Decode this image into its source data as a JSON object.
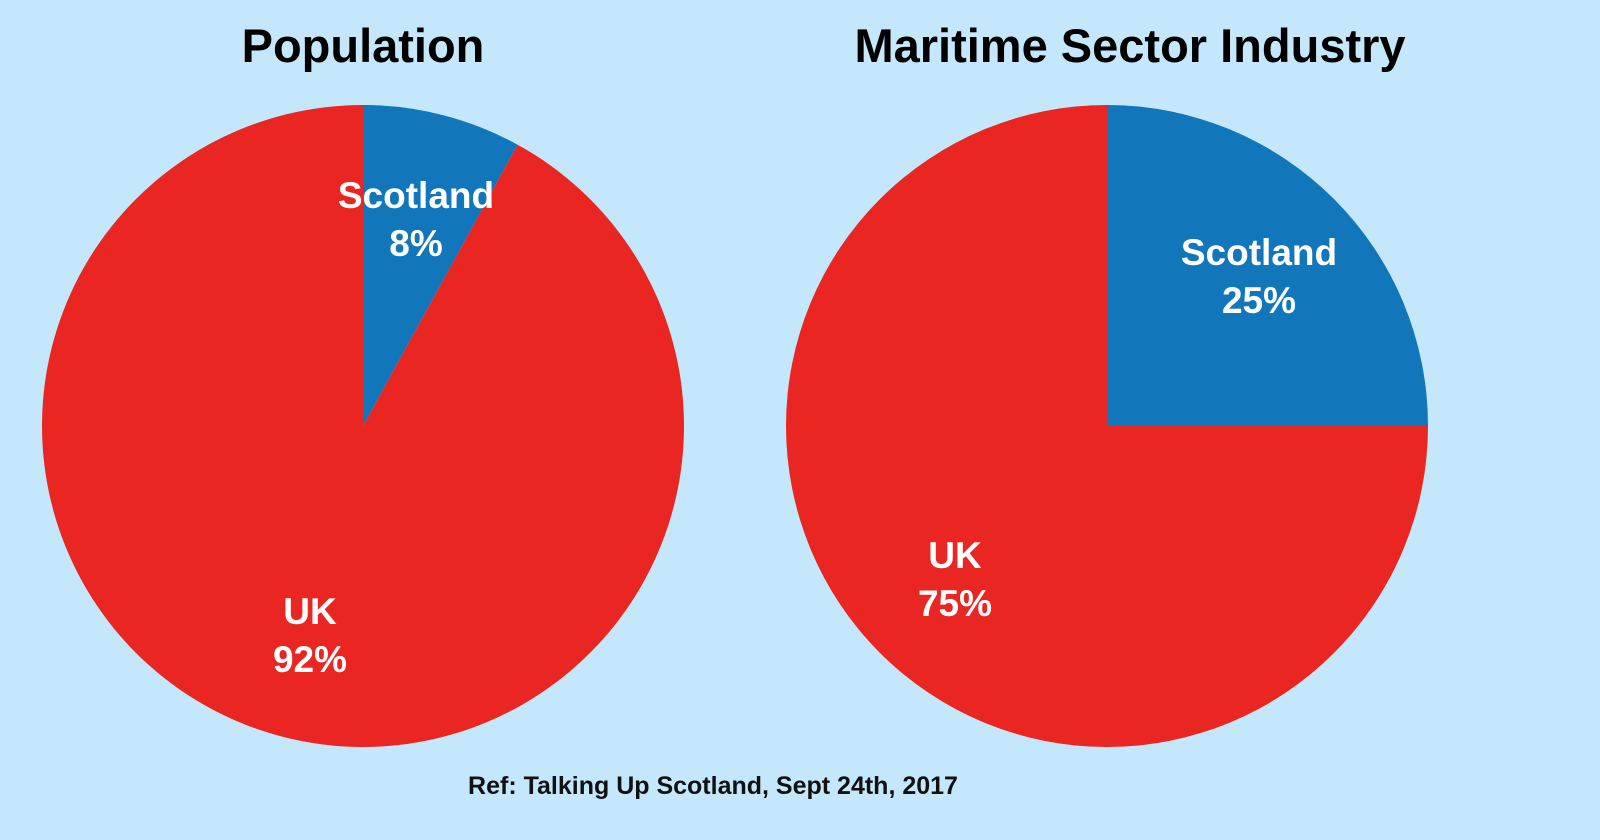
{
  "chart_data": [
    {
      "type": "pie",
      "title": "Population",
      "slices": [
        {
          "label": "Scotland",
          "value": 8,
          "value_label": "8%",
          "color": "#1276ba"
        },
        {
          "label": "UK",
          "value": 92,
          "value_label": "92%",
          "color": "#e92621"
        }
      ]
    },
    {
      "type": "pie",
      "title": "Maritime Sector Industry",
      "slices": [
        {
          "label": "Scotland",
          "value": 25,
          "value_label": "25%",
          "color": "#1276ba"
        },
        {
          "label": "UK",
          "value": 75,
          "value_label": "75%",
          "color": "#e92621"
        }
      ]
    }
  ],
  "source": "Ref: Talking Up Scotland, Sept 24th, 2017",
  "colors": {
    "background": "#c4e7fb",
    "scotland": "#1276ba",
    "uk": "#e92621"
  }
}
